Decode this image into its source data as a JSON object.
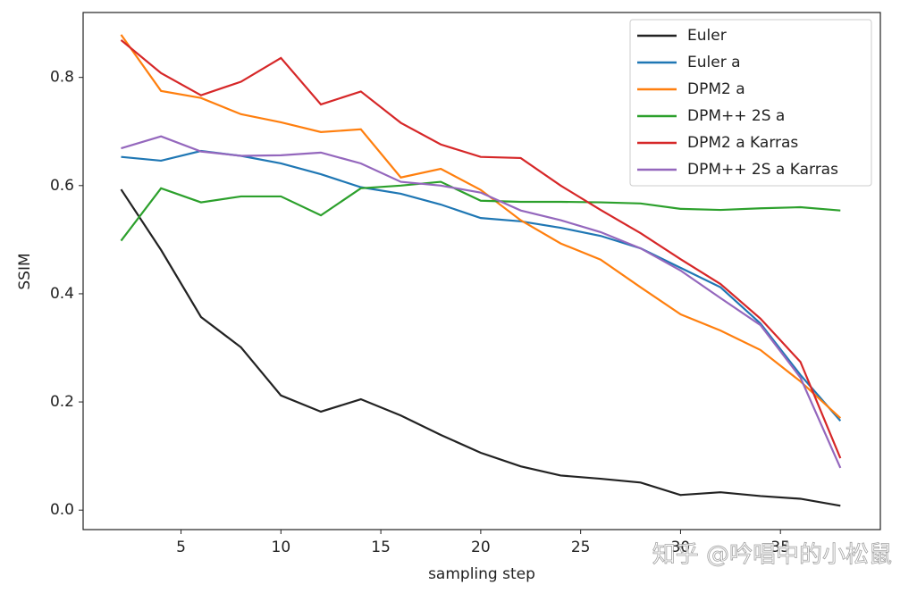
{
  "chart_data": {
    "type": "line",
    "x": [
      2,
      4,
      6,
      8,
      10,
      12,
      14,
      16,
      18,
      20,
      22,
      24,
      26,
      28,
      30,
      32,
      34,
      36,
      38
    ],
    "xlim": [
      0.1,
      40
    ],
    "ylim": [
      -0.036,
      0.92
    ],
    "xticks": [
      5,
      10,
      15,
      20,
      25,
      30,
      35
    ],
    "yticks": [
      {
        "value": 0,
        "label": "0.0"
      },
      0.2,
      0.4,
      0.6,
      0.8
    ],
    "xlabel": "sampling step",
    "ylabel": "SSIM",
    "legend": "upper right",
    "grid": false,
    "watermark": "知乎 @吟唱中的小松鼠",
    "series": [
      {
        "name": "Euler",
        "color": "#222222",
        "values": [
          0.593,
          0.481,
          0.357,
          0.301,
          0.212,
          0.182,
          0.205,
          0.175,
          0.139,
          0.106,
          0.081,
          0.064,
          0.058,
          0.051,
          0.028,
          0.033,
          0.026,
          0.021,
          0.008
        ]
      },
      {
        "name": "Euler a",
        "color": "#1f77b4",
        "values": [
          0.653,
          0.646,
          0.664,
          0.655,
          0.641,
          0.621,
          0.597,
          0.585,
          0.565,
          0.54,
          0.534,
          0.522,
          0.507,
          0.484,
          0.448,
          0.412,
          0.345,
          0.25,
          0.165
        ]
      },
      {
        "name": "DPM2 a",
        "color": "#ff7f0e",
        "values": [
          0.879,
          0.775,
          0.762,
          0.732,
          0.717,
          0.699,
          0.704,
          0.615,
          0.631,
          0.592,
          0.536,
          0.493,
          0.463,
          0.412,
          0.362,
          0.332,
          0.296,
          0.238,
          0.17
        ]
      },
      {
        "name": "DPM++ 2S a",
        "color": "#2ca02c",
        "values": [
          0.498,
          0.595,
          0.569,
          0.58,
          0.58,
          0.545,
          0.595,
          0.6,
          0.607,
          0.572,
          0.57,
          0.57,
          0.569,
          0.567,
          0.557,
          0.555,
          0.558,
          0.56,
          0.554
        ]
      },
      {
        "name": "DPM2 a Karras",
        "color": "#d62728",
        "values": [
          0.869,
          0.808,
          0.767,
          0.792,
          0.836,
          0.75,
          0.774,
          0.716,
          0.676,
          0.653,
          0.651,
          0.6,
          0.555,
          0.512,
          0.464,
          0.418,
          0.354,
          0.274,
          0.096
        ]
      },
      {
        "name": "DPM++ 2S a Karras",
        "color": "#9467bd",
        "values": [
          0.669,
          0.691,
          0.663,
          0.655,
          0.656,
          0.661,
          0.641,
          0.607,
          0.6,
          0.587,
          0.554,
          0.536,
          0.514,
          0.484,
          0.443,
          0.392,
          0.342,
          0.245,
          0.078
        ]
      }
    ]
  }
}
